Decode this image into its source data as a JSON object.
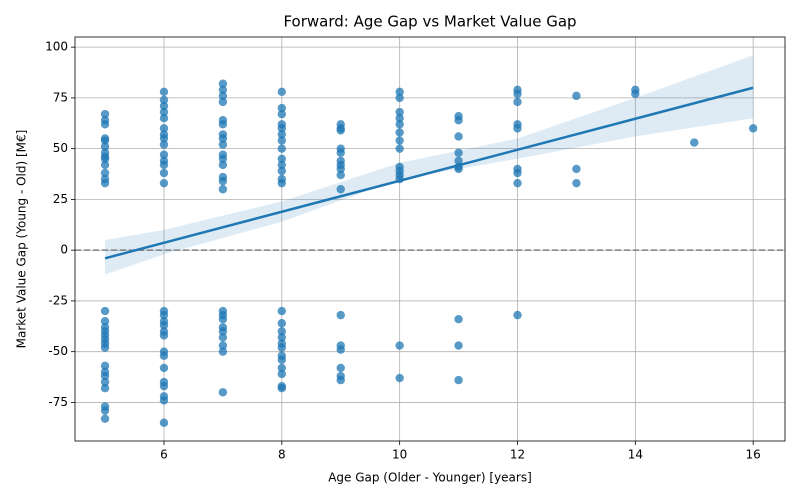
{
  "chart_data": {
    "type": "scatter",
    "title": "Forward: Age Gap vs Market Value Gap",
    "x_label": "Age Gap (Older - Younger) [years]",
    "y_label": "Market Value Gap (Young - Old) [M€]",
    "color": "#1f77b4",
    "grid": true,
    "xlim": [
      4.49,
      16.54
    ],
    "ylim": [
      -94,
      105
    ],
    "xticks": [
      6,
      8,
      10,
      12,
      14,
      16
    ],
    "yticks": [
      -75,
      -50,
      -25,
      0,
      25,
      50,
      75,
      100
    ],
    "reference_line": 0,
    "x": [
      5,
      5,
      5,
      5,
      5,
      5,
      5,
      5,
      5,
      5,
      5,
      5,
      5,
      5,
      5,
      5,
      5,
      5,
      5,
      5,
      5,
      5,
      5,
      5,
      5,
      5,
      5,
      5,
      5,
      6,
      6,
      6,
      6,
      6,
      6,
      6,
      6,
      6,
      6,
      6,
      6,
      6,
      6,
      6,
      6,
      6,
      6,
      6,
      6,
      6,
      6,
      6,
      6,
      6,
      6,
      6,
      6,
      7,
      7,
      7,
      7,
      7,
      7,
      7,
      7,
      7,
      7,
      7,
      7,
      7,
      7,
      7,
      7,
      7,
      7,
      7,
      7,
      7,
      7,
      7,
      7,
      8,
      8,
      8,
      8,
      8,
      8,
      8,
      8,
      8,
      8,
      8,
      8,
      8,
      8,
      8,
      8,
      8,
      8,
      8,
      8,
      8,
      8,
      8,
      8,
      8,
      9,
      9,
      9,
      9,
      9,
      9,
      9,
      9,
      9,
      9,
      9,
      9,
      9,
      9,
      9,
      9,
      10,
      10,
      10,
      10,
      10,
      10,
      10,
      10,
      10,
      10,
      10,
      10,
      10,
      10,
      11,
      11,
      11,
      11,
      11,
      11,
      11,
      11,
      11,
      11,
      12,
      12,
      12,
      12,
      12,
      12,
      12,
      12,
      12,
      13,
      13,
      13,
      14,
      14,
      15,
      16
    ],
    "y": [
      67,
      64,
      62,
      55,
      54,
      51,
      48,
      46,
      45,
      42,
      38,
      35,
      33,
      -30,
      -35,
      -38,
      -40,
      -42,
      -44,
      -46,
      -48,
      -57,
      -60,
      -62,
      -65,
      -68,
      -77,
      -79,
      -83,
      78,
      74,
      71,
      68,
      65,
      60,
      57,
      55,
      52,
      47,
      44,
      42,
      38,
      33,
      -30,
      -32,
      -35,
      -37,
      -40,
      -42,
      -50,
      -52,
      -58,
      -65,
      -67,
      -72,
      -74,
      -85,
      82,
      79,
      76,
      73,
      64,
      62,
      57,
      55,
      52,
      47,
      45,
      42,
      36,
      34,
      30,
      -30,
      -32,
      -34,
      -38,
      -40,
      -43,
      -47,
      -50,
      -70,
      78,
      70,
      67,
      62,
      60,
      57,
      54,
      50,
      45,
      42,
      39,
      35,
      33,
      -30,
      -36,
      -40,
      -43,
      -46,
      -48,
      -52,
      -54,
      -58,
      -61,
      -67,
      -68,
      62,
      60,
      59,
      50,
      48,
      44,
      42,
      40,
      37,
      30,
      -32,
      -47,
      -49,
      -58,
      -62,
      -64,
      78,
      75,
      68,
      65,
      62,
      58,
      54,
      50,
      41,
      39,
      37,
      35,
      -47,
      -63,
      66,
      64,
      56,
      48,
      44,
      41,
      40,
      -34,
      -47,
      -64,
      79,
      77,
      73,
      62,
      60,
      40,
      38,
      33,
      -32,
      76,
      40,
      33,
      79,
      77,
      53,
      60
    ],
    "fit": {
      "x": [
        5,
        16
      ],
      "y": [
        -4,
        80
      ]
    },
    "band": {
      "x": [
        5,
        6,
        8,
        10,
        12,
        14,
        16
      ],
      "lower": [
        -12,
        -2,
        14,
        35,
        45,
        56,
        65
      ],
      "upper": [
        5,
        10,
        24,
        43,
        55,
        75,
        96
      ]
    }
  }
}
